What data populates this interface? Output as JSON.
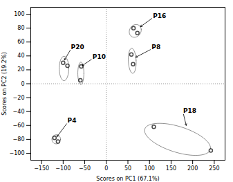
{
  "chart_data": {
    "type": "scatter",
    "xlabel": "Scores on PC1 (67.1%)",
    "ylabel": "Scores on PC2 (19.2%)",
    "xlim": [
      -175,
      275
    ],
    "ylim": [
      -110,
      110
    ],
    "xticks": [
      -150,
      -100,
      -50,
      0,
      50,
      100,
      150,
      200,
      250
    ],
    "yticks": [
      -100,
      -80,
      -60,
      -40,
      -20,
      0,
      20,
      40,
      60,
      80,
      100
    ],
    "grid": false,
    "marker": "circle",
    "reference_x": 0,
    "reference_y": 0,
    "groups": [
      {
        "name": "P20",
        "points": [
          [
            -100,
            30
          ],
          [
            -90,
            26
          ]
        ],
        "ellipse": {
          "center": [
            -98,
            22
          ],
          "width": 22,
          "height": 35,
          "angle": 0
        },
        "label_xy": [
          -82,
          50
        ],
        "arrow_xy": [
          -97,
          34
        ]
      },
      {
        "name": "P10",
        "points": [
          [
            -58,
            25
          ],
          [
            -60,
            5
          ]
        ],
        "ellipse": {
          "center": [
            -59,
            15
          ],
          "width": 14,
          "height": 32,
          "angle": 0
        },
        "label_xy": [
          -32,
          36
        ],
        "arrow_xy": [
          -56,
          26
        ]
      },
      {
        "name": "P16",
        "points": [
          [
            63,
            80
          ],
          [
            72,
            73
          ]
        ],
        "ellipse": {
          "center": [
            67,
            76
          ],
          "width": 28,
          "height": 18,
          "angle": 10
        },
        "label_xy": [
          108,
          95
        ],
        "arrow_xy": [
          79,
          82
        ]
      },
      {
        "name": "P8",
        "points": [
          [
            58,
            42
          ],
          [
            62,
            28
          ]
        ],
        "ellipse": {
          "center": [
            60,
            33
          ],
          "width": 18,
          "height": 36,
          "angle": 5
        },
        "label_xy": [
          105,
          50
        ],
        "arrow_xy": [
          68,
          38
        ]
      },
      {
        "name": "P4",
        "points": [
          [
            -120,
            -78
          ],
          [
            -112,
            -83
          ]
        ],
        "ellipse": {
          "center": [
            -116,
            -80
          ],
          "width": 20,
          "height": 13,
          "angle": 0
        },
        "label_xy": [
          -90,
          -56
        ],
        "arrow_xy": [
          -114,
          -76
        ]
      },
      {
        "name": "P18",
        "points": [
          [
            110,
            -62
          ],
          [
            242,
            -96
          ]
        ],
        "ellipse": {
          "center": [
            165,
            -80
          ],
          "width": 155,
          "height": 38,
          "angle": -10
        },
        "label_xy": [
          178,
          -42
        ],
        "arrow_xy": [
          185,
          -60
        ]
      }
    ]
  }
}
